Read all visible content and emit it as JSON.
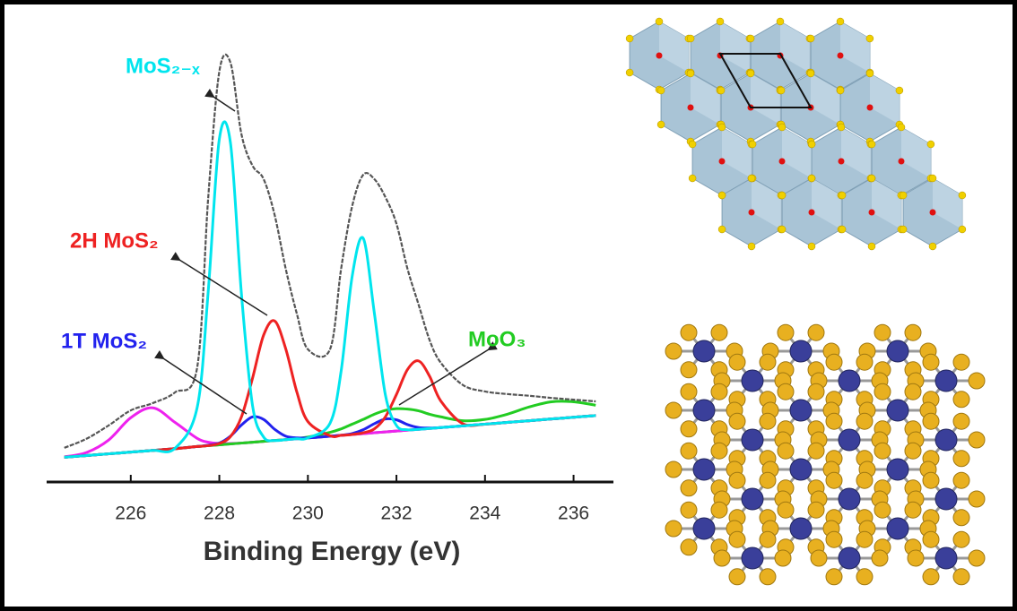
{
  "chart_data": {
    "type": "line",
    "x_label": "Binding Energy (eV)",
    "x": [
      224.5,
      225,
      225.5,
      226,
      226.5,
      227,
      227.5,
      227.75,
      228,
      228.25,
      228.5,
      228.75,
      229,
      229.25,
      229.5,
      229.75,
      230,
      230.5,
      230.75,
      231,
      231.25,
      231.5,
      231.75,
      232,
      232.25,
      232.5,
      232.75,
      233,
      233.5,
      234,
      234.5,
      235,
      235.5,
      236,
      236.5
    ],
    "xlim": [
      224.1,
      236.9
    ],
    "xticks": [
      226,
      228,
      230,
      232,
      234,
      236
    ],
    "ylim": [
      0,
      100
    ],
    "series": [
      {
        "color": "#555555",
        "values": [
          4.2,
          6.3,
          9.4,
          12.9,
          14.6,
          17.1,
          22.9,
          62.5,
          91.7,
          93.8,
          77.1,
          69.8,
          66.7,
          58.3,
          45.8,
          35.4,
          27.1,
          27.1,
          45.8,
          60.4,
          67.7,
          66.7,
          62.5,
          56.3,
          45.8,
          37.5,
          29.2,
          24.0,
          18.8,
          17.3,
          16.7,
          16.3,
          15.8,
          15.4,
          15.0
        ]
      },
      {
        "color": "#ee22ee",
        "values": [
          2.1,
          3.1,
          6.0,
          11.2,
          13.5,
          10.1,
          6.4,
          5.5,
          5.2,
          5.2,
          5.3,
          5.5,
          5.7,
          5.9,
          6.1,
          6.3,
          6.5,
          6.9,
          7.1,
          7.3,
          7.5,
          7.7,
          7.9,
          8.1,
          8.3,
          8.5,
          8.7,
          8.9,
          9.3,
          9.7,
          10.1,
          10.5,
          10.9,
          11.3,
          11.7
        ]
      },
      {
        "name": "MoS₂₋ₓ",
        "color": "#00e5ee",
        "values": [
          2.0,
          2.4,
          2.8,
          3.2,
          3.6,
          4.1,
          13.6,
          40.7,
          76.0,
          75.2,
          39.9,
          14.0,
          6.7,
          5.9,
          6.1,
          6.3,
          6.5,
          9.9,
          22.0,
          44.1,
          52.9,
          35.6,
          16.5,
          9.4,
          8.4,
          8.5,
          8.7,
          8.9,
          9.3,
          9.7,
          10.1,
          10.5,
          10.9,
          11.3,
          11.7
        ]
      },
      {
        "name": "2H MoS₂",
        "color": "#ee2222",
        "values": [
          2.0,
          2.4,
          2.8,
          3.2,
          3.6,
          4.0,
          4.5,
          4.7,
          5.2,
          6.8,
          11.4,
          20.4,
          30.4,
          33.7,
          27.2,
          17.2,
          10.3,
          7.0,
          7.1,
          7.3,
          7.7,
          8.6,
          11.4,
          16.6,
          22.4,
          24.4,
          20.8,
          15.1,
          9.8,
          9.7,
          10.1,
          10.5,
          10.9,
          11.3,
          11.7
        ]
      },
      {
        "name": "1T MoS₂",
        "color": "#2222ee",
        "values": [
          2.0,
          2.4,
          2.8,
          3.2,
          3.6,
          4.0,
          4.5,
          4.8,
          5.3,
          6.9,
          9.5,
          11.4,
          10.8,
          8.5,
          6.9,
          6.5,
          6.5,
          6.9,
          7.1,
          7.5,
          8.4,
          9.8,
          10.9,
          10.7,
          9.6,
          8.9,
          8.8,
          8.9,
          9.3,
          9.7,
          10.1,
          10.5,
          10.9,
          11.3,
          11.7
        ]
      },
      {
        "name": "MoO₃",
        "color": "#22cc22",
        "values": [
          2.0,
          2.4,
          2.8,
          3.2,
          3.6,
          4.0,
          4.5,
          4.7,
          4.9,
          5.1,
          5.3,
          5.5,
          5.7,
          5.9,
          6.1,
          6.4,
          6.7,
          7.8,
          8.6,
          9.7,
          10.8,
          12.0,
          12.9,
          13.3,
          13.2,
          12.8,
          12.0,
          11.4,
          10.5,
          10.8,
          12.0,
          13.7,
          14.9,
          14.9,
          14.1
        ]
      },
      {
        "color": "#666666",
        "values": [
          2.0,
          2.4,
          2.8,
          3.2,
          3.6,
          4.0,
          4.5,
          4.7,
          4.9,
          5.1,
          5.3,
          5.5,
          5.7,
          5.9,
          6.1,
          6.3,
          6.5,
          6.9,
          7.1,
          7.3,
          7.5,
          7.7,
          7.9,
          8.1,
          8.3,
          8.5,
          8.7,
          8.9,
          9.3,
          9.7,
          10.1,
          10.5,
          10.9,
          11.3,
          11.7
        ]
      }
    ]
  }
}
